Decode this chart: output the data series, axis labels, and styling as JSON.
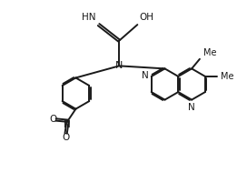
{
  "bg_color": "#ffffff",
  "line_color": "#1a1a1a",
  "line_width": 1.4,
  "font_size": 7.5,
  "xlim": [
    0,
    10
  ],
  "ylim": [
    0,
    7.5
  ]
}
